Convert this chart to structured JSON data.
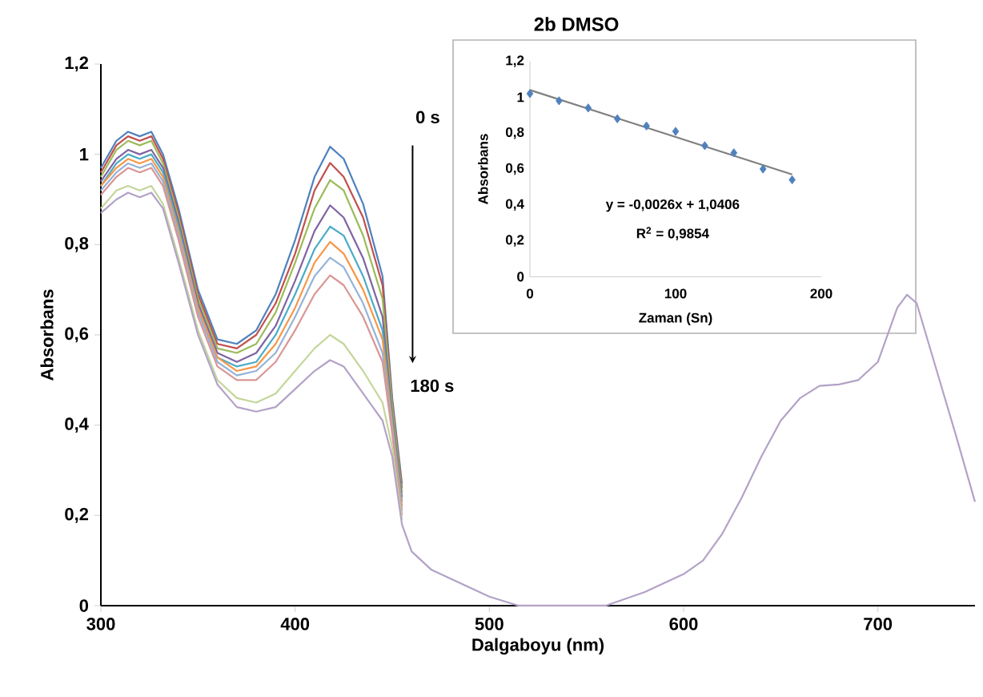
{
  "chart_data": [
    {
      "type": "line",
      "title": "2b DMSO",
      "xlabel": "Dalgaboyu (nm)",
      "ylabel": "Absorbans",
      "x": [
        300,
        308,
        314,
        320,
        326,
        332,
        340,
        350,
        360,
        370,
        380,
        390,
        400,
        410,
        418,
        425,
        435,
        445,
        450,
        455,
        460,
        470,
        480,
        490,
        500,
        515,
        540,
        560,
        580,
        600,
        610,
        620,
        630,
        640,
        650,
        660,
        670,
        680,
        690,
        700,
        710,
        715,
        720,
        730,
        740,
        750
      ],
      "series": [
        {
          "color": "#4f81bd",
          "values": [
            0.97,
            1.03,
            1.05,
            1.04,
            1.05,
            1.0,
            0.88,
            0.7,
            0.59,
            0.58,
            0.61,
            0.69,
            0.81,
            0.95,
            1.017,
            0.99,
            0.89,
            0.73,
            0.46,
            0.27,
            null,
            null,
            null,
            null,
            null,
            null,
            null,
            null,
            null,
            null,
            null,
            null,
            null,
            null,
            null,
            null,
            null,
            null,
            null,
            null,
            null,
            null,
            null,
            null,
            null,
            null
          ]
        },
        {
          "color": "#c0504d",
          "values": [
            0.96,
            1.02,
            1.04,
            1.03,
            1.04,
            0.99,
            0.87,
            0.69,
            0.58,
            0.57,
            0.6,
            0.67,
            0.78,
            0.92,
            0.981,
            0.95,
            0.86,
            0.71,
            0.45,
            0.26,
            null,
            null,
            null,
            null,
            null,
            null,
            null,
            null,
            null,
            null,
            null,
            null,
            null,
            null,
            null,
            null,
            null,
            null,
            null,
            null,
            null,
            null,
            null,
            null,
            null,
            null
          ]
        },
        {
          "color": "#9bbb59",
          "values": [
            0.95,
            1.01,
            1.03,
            1.02,
            1.03,
            0.98,
            0.86,
            0.68,
            0.57,
            0.56,
            0.58,
            0.65,
            0.76,
            0.88,
            0.943,
            0.92,
            0.82,
            0.68,
            0.44,
            0.25,
            null,
            null,
            null,
            null,
            null,
            null,
            null,
            null,
            null,
            null,
            null,
            null,
            null,
            null,
            null,
            null,
            null,
            null,
            null,
            null,
            null,
            null,
            null,
            null,
            null,
            null
          ]
        },
        {
          "color": "#8064a2",
          "values": [
            0.94,
            0.99,
            1.01,
            1.0,
            1.01,
            0.97,
            0.85,
            0.67,
            0.56,
            0.54,
            0.56,
            0.62,
            0.72,
            0.83,
            0.887,
            0.86,
            0.77,
            0.64,
            0.42,
            0.24,
            null,
            null,
            null,
            null,
            null,
            null,
            null,
            null,
            null,
            null,
            null,
            null,
            null,
            null,
            null,
            null,
            null,
            null,
            null,
            null,
            null,
            null,
            null,
            null,
            null,
            null
          ]
        },
        {
          "color": "#4bacc6",
          "values": [
            0.93,
            0.98,
            1.0,
            0.99,
            1.0,
            0.96,
            0.84,
            0.66,
            0.55,
            0.53,
            0.54,
            0.6,
            0.69,
            0.79,
            0.84,
            0.82,
            0.73,
            0.61,
            0.41,
            0.23,
            null,
            null,
            null,
            null,
            null,
            null,
            null,
            null,
            null,
            null,
            null,
            null,
            null,
            null,
            null,
            null,
            null,
            null,
            null,
            null,
            null,
            null,
            null,
            null,
            null,
            null
          ]
        },
        {
          "color": "#f79646",
          "values": [
            0.93,
            0.97,
            0.99,
            0.98,
            0.99,
            0.95,
            0.83,
            0.66,
            0.55,
            0.52,
            0.53,
            0.58,
            0.66,
            0.76,
            0.806,
            0.78,
            0.7,
            0.59,
            0.4,
            0.22,
            null,
            null,
            null,
            null,
            null,
            null,
            null,
            null,
            null,
            null,
            null,
            null,
            null,
            null,
            null,
            null,
            null,
            null,
            null,
            null,
            null,
            null,
            null,
            null,
            null,
            null
          ]
        },
        {
          "color": "#95b3d7",
          "values": [
            0.92,
            0.96,
            0.98,
            0.97,
            0.98,
            0.94,
            0.82,
            0.65,
            0.54,
            0.51,
            0.52,
            0.56,
            0.64,
            0.73,
            0.771,
            0.75,
            0.67,
            0.56,
            0.39,
            0.21,
            null,
            null,
            null,
            null,
            null,
            null,
            null,
            null,
            null,
            null,
            null,
            null,
            null,
            null,
            null,
            null,
            null,
            null,
            null,
            null,
            null,
            null,
            null,
            null,
            null,
            null
          ]
        },
        {
          "color": "#d99694",
          "values": [
            0.91,
            0.95,
            0.97,
            0.96,
            0.97,
            0.93,
            0.81,
            0.64,
            0.53,
            0.5,
            0.5,
            0.54,
            0.61,
            0.69,
            0.732,
            0.71,
            0.64,
            0.54,
            0.38,
            0.2,
            null,
            null,
            null,
            null,
            null,
            null,
            null,
            null,
            null,
            null,
            null,
            null,
            null,
            null,
            null,
            null,
            null,
            null,
            null,
            null,
            null,
            null,
            null,
            null,
            null,
            null
          ]
        },
        {
          "color": "#c3d69b",
          "values": [
            0.88,
            0.92,
            0.93,
            0.92,
            0.93,
            0.89,
            0.77,
            0.61,
            0.5,
            0.46,
            0.45,
            0.47,
            0.52,
            0.57,
            0.6,
            0.58,
            0.52,
            0.45,
            0.35,
            0.19,
            null,
            null,
            null,
            null,
            null,
            null,
            null,
            null,
            null,
            null,
            null,
            null,
            null,
            null,
            null,
            null,
            null,
            null,
            null,
            null,
            null,
            null,
            null,
            null,
            null,
            null
          ]
        },
        {
          "color": "#b3a2c7",
          "values": [
            0.87,
            0.9,
            0.915,
            0.905,
            0.915,
            0.88,
            0.76,
            0.6,
            0.49,
            0.44,
            0.43,
            0.44,
            0.48,
            0.52,
            0.544,
            0.53,
            0.47,
            0.41,
            0.33,
            0.18,
            0.12,
            0.08,
            0.06,
            0.04,
            0.02,
            0,
            0,
            0,
            0.03,
            0.07,
            0.1,
            0.16,
            0.24,
            0.33,
            0.41,
            0.46,
            0.487,
            0.49,
            0.5,
            0.54,
            0.66,
            0.689,
            0.67,
            0.525,
            0.38,
            0.23
          ]
        }
      ],
      "xlim": [
        300,
        750
      ],
      "ylim": [
        0,
        1.2
      ],
      "xticks": [
        300,
        400,
        500,
        600,
        700
      ],
      "yticks": [
        0,
        {
          "value": 0.2,
          "label": "0,2"
        },
        {
          "value": 0.4,
          "label": "0,4"
        },
        {
          "value": 0.6,
          "label": "0,6"
        },
        {
          "value": 0.8,
          "label": "0,8"
        },
        1,
        {
          "value": 1.2,
          "label": "1,2"
        }
      ],
      "annotations": [
        "0 s",
        "180 s"
      ]
    },
    {
      "type": "scatter",
      "xlabel": "Zaman (Sn)",
      "ylabel": "Absorbans",
      "marker": "diamond",
      "x": [
        0,
        20,
        40,
        60,
        80,
        100,
        120,
        140,
        160,
        180
      ],
      "series": [
        {
          "color": "#4f81bd",
          "values": [
            1.02,
            0.98,
            0.94,
            0.88,
            0.84,
            0.81,
            0.73,
            0.69,
            0.6,
            0.54
          ]
        },
        {
          "type": "line",
          "color": "#808080",
          "marker": "none",
          "x": [
            0,
            180
          ],
          "values": [
            1.04,
            0.57
          ]
        }
      ],
      "xlim": [
        0,
        200
      ],
      "ylim": [
        0,
        1.2
      ],
      "xticks": [
        0,
        100,
        200
      ],
      "yticks": [
        0,
        {
          "value": 0.2,
          "label": "0,2"
        },
        {
          "value": 0.4,
          "label": "0,4"
        },
        {
          "value": 0.6,
          "label": "0,6"
        },
        {
          "value": 0.8,
          "label": "0,8"
        },
        1,
        {
          "value": 1.2,
          "label": "1,2"
        }
      ],
      "annotations": [
        "y = -0,0026x + 1,0406",
        "R$^{2}$ = 0,9854"
      ]
    }
  ]
}
